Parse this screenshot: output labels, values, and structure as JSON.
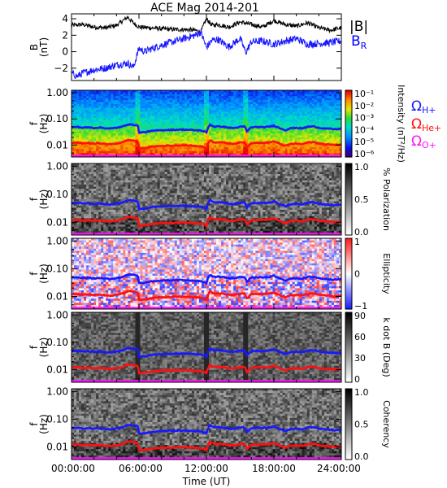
{
  "title": "ACE Mag 2014-201",
  "colors": {
    "black": "#000000",
    "blue": "#1818ff",
    "red": "#ff1010",
    "magenta": "#ff10ff",
    "magnetic_blue": "#0000ff"
  },
  "chart_data": [
    {
      "type": "line",
      "panel": "field",
      "ylabel": "B (nT)",
      "yticks": [
        "4",
        "2",
        "0",
        "−2"
      ],
      "ylim": [
        -3.5,
        4.6
      ],
      "xlim": [
        "00:00:00",
        "24:00:00"
      ],
      "series": [
        {
          "name": "|B|",
          "color": "#000000",
          "x": [
            0,
            1,
            2,
            3,
            4,
            5,
            5.5,
            6,
            7,
            8,
            9,
            10,
            11,
            11.5,
            12,
            12.5,
            13,
            14,
            15,
            16,
            17,
            18,
            19,
            20,
            21,
            22,
            23,
            24
          ],
          "y": [
            3.2,
            3.3,
            3.0,
            2.9,
            3.2,
            4.2,
            3.5,
            3.0,
            2.9,
            2.8,
            2.7,
            2.7,
            2.6,
            2.4,
            4.0,
            3.2,
            3.3,
            3.0,
            3.6,
            3.3,
            3.0,
            3.8,
            3.3,
            3.1,
            3.5,
            2.9,
            2.6,
            2.9
          ]
        },
        {
          "name": "B",
          "color": "#1818ff",
          "x": [
            0,
            0.5,
            1,
            2,
            3,
            4,
            5,
            5.5,
            6,
            6.5,
            7,
            8,
            9,
            10,
            11,
            11.5,
            12,
            12.5,
            13,
            14,
            15,
            15.5,
            16,
            17,
            18,
            19,
            20,
            21,
            22,
            23,
            24
          ],
          "y": [
            -2.6,
            -3.0,
            -2.6,
            -2.2,
            -2.0,
            -1.6,
            -1.4,
            -1.9,
            0.4,
            0.0,
            0.3,
            0.8,
            1.2,
            1.6,
            2.0,
            2.4,
            0.5,
            1.4,
            1.5,
            0.6,
            1.6,
            -0.1,
            1.2,
            1.3,
            0.9,
            1.3,
            1.6,
            0.9,
            1.0,
            1.1,
            1.3
          ]
        }
      ]
    },
    {
      "type": "heatmap",
      "panel": "intensity",
      "ylabel": "f (Hz)",
      "yticks": [
        "1.00",
        "0.10",
        "0.01"
      ],
      "colorbar_label": "Intensity (nT²/Hz)",
      "colorbar_ticks": [
        "10⁻¹",
        "10⁻²",
        "10⁻³",
        "10⁻⁴",
        "10⁻⁵",
        "10⁻⁶"
      ],
      "legend": [
        "ΩH+",
        "ΩHe+",
        "ΩO+"
      ]
    },
    {
      "type": "heatmap",
      "panel": "polarization",
      "ylabel": "f (Hz)",
      "yticks": [
        "1.00",
        "0.10",
        "0.01"
      ],
      "colorbar_label": "% Polarization",
      "colorbar_ticks": [
        "1.0",
        "0.5",
        "0.0"
      ]
    },
    {
      "type": "heatmap",
      "panel": "ellipticity",
      "ylabel": "f (Hz)",
      "yticks": [
        "1.00",
        "0.10",
        "0.01"
      ],
      "colorbar_label": "Ellipticity",
      "colorbar_ticks": [
        "1",
        "0",
        "−1"
      ]
    },
    {
      "type": "heatmap",
      "panel": "kdotb",
      "ylabel": "f (Hz)",
      "yticks": [
        "1.00",
        "0.10",
        "0.01"
      ],
      "colorbar_label": "k dot B (Deg)",
      "colorbar_ticks": [
        "90",
        "60",
        "30",
        "0"
      ]
    },
    {
      "type": "heatmap",
      "panel": "coherency",
      "ylabel": "f (Hz)",
      "yticks": [
        "1.00",
        "0.10",
        "0.01"
      ],
      "colorbar_label": "Coherency",
      "colorbar_ticks": [
        "1.0",
        "0.5",
        "0.0"
      ]
    }
  ],
  "cyclotron": {
    "x": [
      0,
      0.5,
      1,
      1.5,
      2,
      2.5,
      3,
      3.5,
      4,
      4.5,
      5,
      5.5,
      5.9,
      6.0,
      6.5,
      7,
      7.5,
      8,
      8.5,
      9,
      9.5,
      10,
      10.5,
      11,
      11.5,
      11.8,
      12.0,
      12.3,
      12.7,
      13,
      13.5,
      14,
      14.5,
      15,
      15.4,
      15.6,
      16,
      16.5,
      17,
      17.5,
      18,
      18.5,
      19,
      19.5,
      20,
      20.5,
      21,
      21.5,
      22,
      22.5,
      23,
      23.5,
      24
    ],
    "h_hz": [
      0.047,
      0.05,
      0.046,
      0.048,
      0.045,
      0.047,
      0.044,
      0.043,
      0.046,
      0.05,
      0.062,
      0.06,
      0.055,
      0.03,
      0.031,
      0.034,
      0.036,
      0.037,
      0.038,
      0.038,
      0.039,
      0.039,
      0.038,
      0.037,
      0.036,
      0.033,
      0.03,
      0.061,
      0.05,
      0.052,
      0.05,
      0.046,
      0.045,
      0.05,
      0.051,
      0.033,
      0.048,
      0.049,
      0.048,
      0.05,
      0.055,
      0.045,
      0.037,
      0.044,
      0.046,
      0.043,
      0.05,
      0.052,
      0.046,
      0.043,
      0.042,
      0.04,
      0.043
    ]
  },
  "xaxis": {
    "ticks": [
      "00:00:00",
      "06:00:00",
      "12:00:00",
      "18:00:00",
      "24:00:00"
    ],
    "label": "Time (UT)"
  },
  "legend_top": {
    "b": "|B|",
    "br": "B",
    "br_sub": "R"
  },
  "legend_ions": [
    {
      "sym": "Ω",
      "sub": "H+"
    },
    {
      "sym": "Ω",
      "sub": "He+"
    },
    {
      "sym": "Ω",
      "sub": "O+"
    }
  ]
}
